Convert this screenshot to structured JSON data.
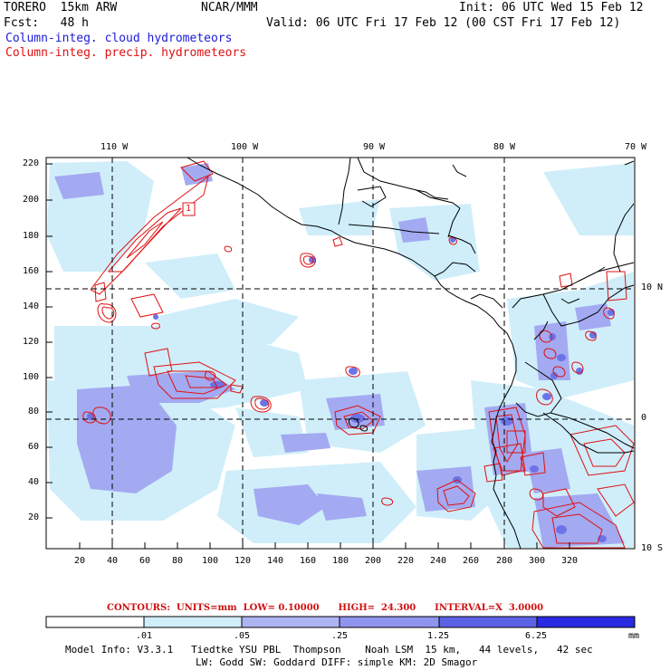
{
  "header": {
    "model": "TORERO  15km ARW",
    "org": "NCAR/MMM",
    "init": "Init: 06 UTC Wed 15 Feb 12",
    "fcst": "Fcst:   48 h",
    "valid": "Valid: 06 UTC Fri 17 Feb 12 (00 CST Fri 17 Feb 12)",
    "field1": "Column-integ. cloud hydrometeors",
    "field2": "Column-integ. precip. hydrometeors"
  },
  "map": {
    "top_lon_labels": [
      "110 W",
      "100 W",
      "90 W",
      "80 W",
      "70 W"
    ],
    "right_lat_labels": [
      "10 N",
      "0",
      "10 S"
    ],
    "left_ticks": [
      "220",
      "200",
      "180",
      "160",
      "140",
      "120",
      "100",
      "80",
      "60",
      "40",
      "20"
    ],
    "bottom_ticks": [
      "20",
      "40",
      "60",
      "80",
      "100",
      "120",
      "140",
      "160",
      "180",
      "200",
      "220",
      "240",
      "260",
      "280",
      "300",
      "320"
    ],
    "contour_label": "1",
    "colors": {
      "land": "#000000",
      "cloud_light": "#cfeefa",
      "cloud_medium": "#9fa6f0",
      "cloud_dark": "#6c73e8",
      "precip": "#e01010"
    }
  },
  "contours_info": {
    "label": "CONTOURS:  UNITS=mm  LOW= 0.10000      HIGH=  24.300      INTERVAL=X  3.0000"
  },
  "colorbar": {
    "labels": [
      ".01",
      ".05",
      ".25",
      "1.25",
      "6.25"
    ],
    "unit": "mm",
    "colors": [
      "#ffffff",
      "#cfeefa",
      "#aeb4f2",
      "#8f95ee",
      "#6a70e8",
      "#4b50e4",
      "#1c1ce0"
    ]
  },
  "model_info": {
    "line1": "Model Info: V3.3.1   Tiedtke YSU PBL  Thompson    Noah LSM  15 km,   44 levels,   42 sec",
    "line2": "LW: Godd SW: Goddard DIFF: simple KM: 2D Smagor"
  }
}
